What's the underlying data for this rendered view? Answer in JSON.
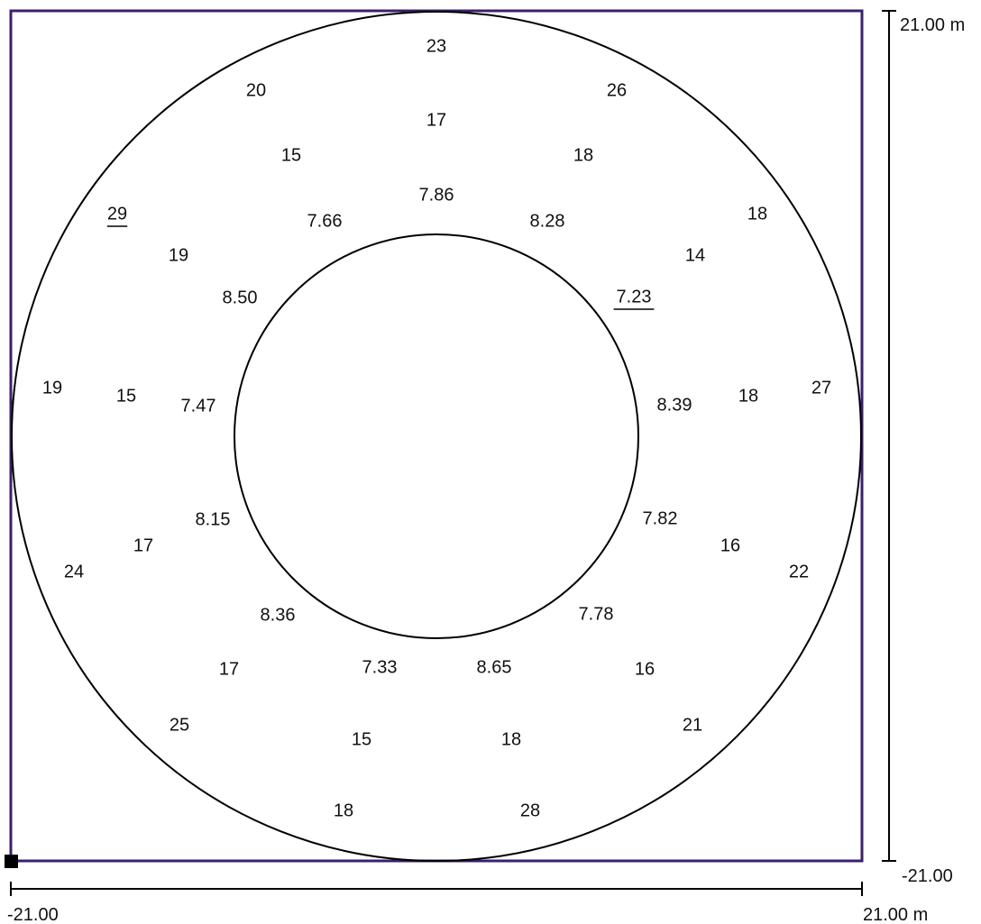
{
  "scale": {
    "vertical": {
      "top_label": "21.00 m",
      "bottom_label": "-21.00"
    },
    "horizontal": {
      "left_label": "-21.00",
      "right_label": "21.00 m"
    }
  },
  "colors": {
    "frame": "#3b1f6b",
    "ink": "#000000"
  },
  "values": [
    {
      "text": "23",
      "underline": false
    },
    {
      "text": "20",
      "underline": false
    },
    {
      "text": "26",
      "underline": false
    },
    {
      "text": "17",
      "underline": false
    },
    {
      "text": "15",
      "underline": false
    },
    {
      "text": "18",
      "underline": false
    },
    {
      "text": "7.86",
      "underline": false
    },
    {
      "text": "29",
      "underline": true
    },
    {
      "text": "7.66",
      "underline": false
    },
    {
      "text": "8.28",
      "underline": false
    },
    {
      "text": "18",
      "underline": false
    },
    {
      "text": "19",
      "underline": false
    },
    {
      "text": "14",
      "underline": false
    },
    {
      "text": "8.50",
      "underline": false
    },
    {
      "text": "7.23",
      "underline": true
    },
    {
      "text": "19",
      "underline": false
    },
    {
      "text": "15",
      "underline": false
    },
    {
      "text": "7.47",
      "underline": false
    },
    {
      "text": "8.39",
      "underline": false
    },
    {
      "text": "18",
      "underline": false
    },
    {
      "text": "27",
      "underline": false
    },
    {
      "text": "8.15",
      "underline": false
    },
    {
      "text": "7.82",
      "underline": false
    },
    {
      "text": "17",
      "underline": false
    },
    {
      "text": "16",
      "underline": false
    },
    {
      "text": "24",
      "underline": false
    },
    {
      "text": "22",
      "underline": false
    },
    {
      "text": "8.36",
      "underline": false
    },
    {
      "text": "7.78",
      "underline": false
    },
    {
      "text": "17",
      "underline": false
    },
    {
      "text": "7.33",
      "underline": false
    },
    {
      "text": "8.65",
      "underline": false
    },
    {
      "text": "16",
      "underline": false
    },
    {
      "text": "25",
      "underline": false
    },
    {
      "text": "21",
      "underline": false
    },
    {
      "text": "15",
      "underline": false
    },
    {
      "text": "18",
      "underline": false
    },
    {
      "text": "18",
      "underline": false
    },
    {
      "text": "28",
      "underline": false
    }
  ]
}
